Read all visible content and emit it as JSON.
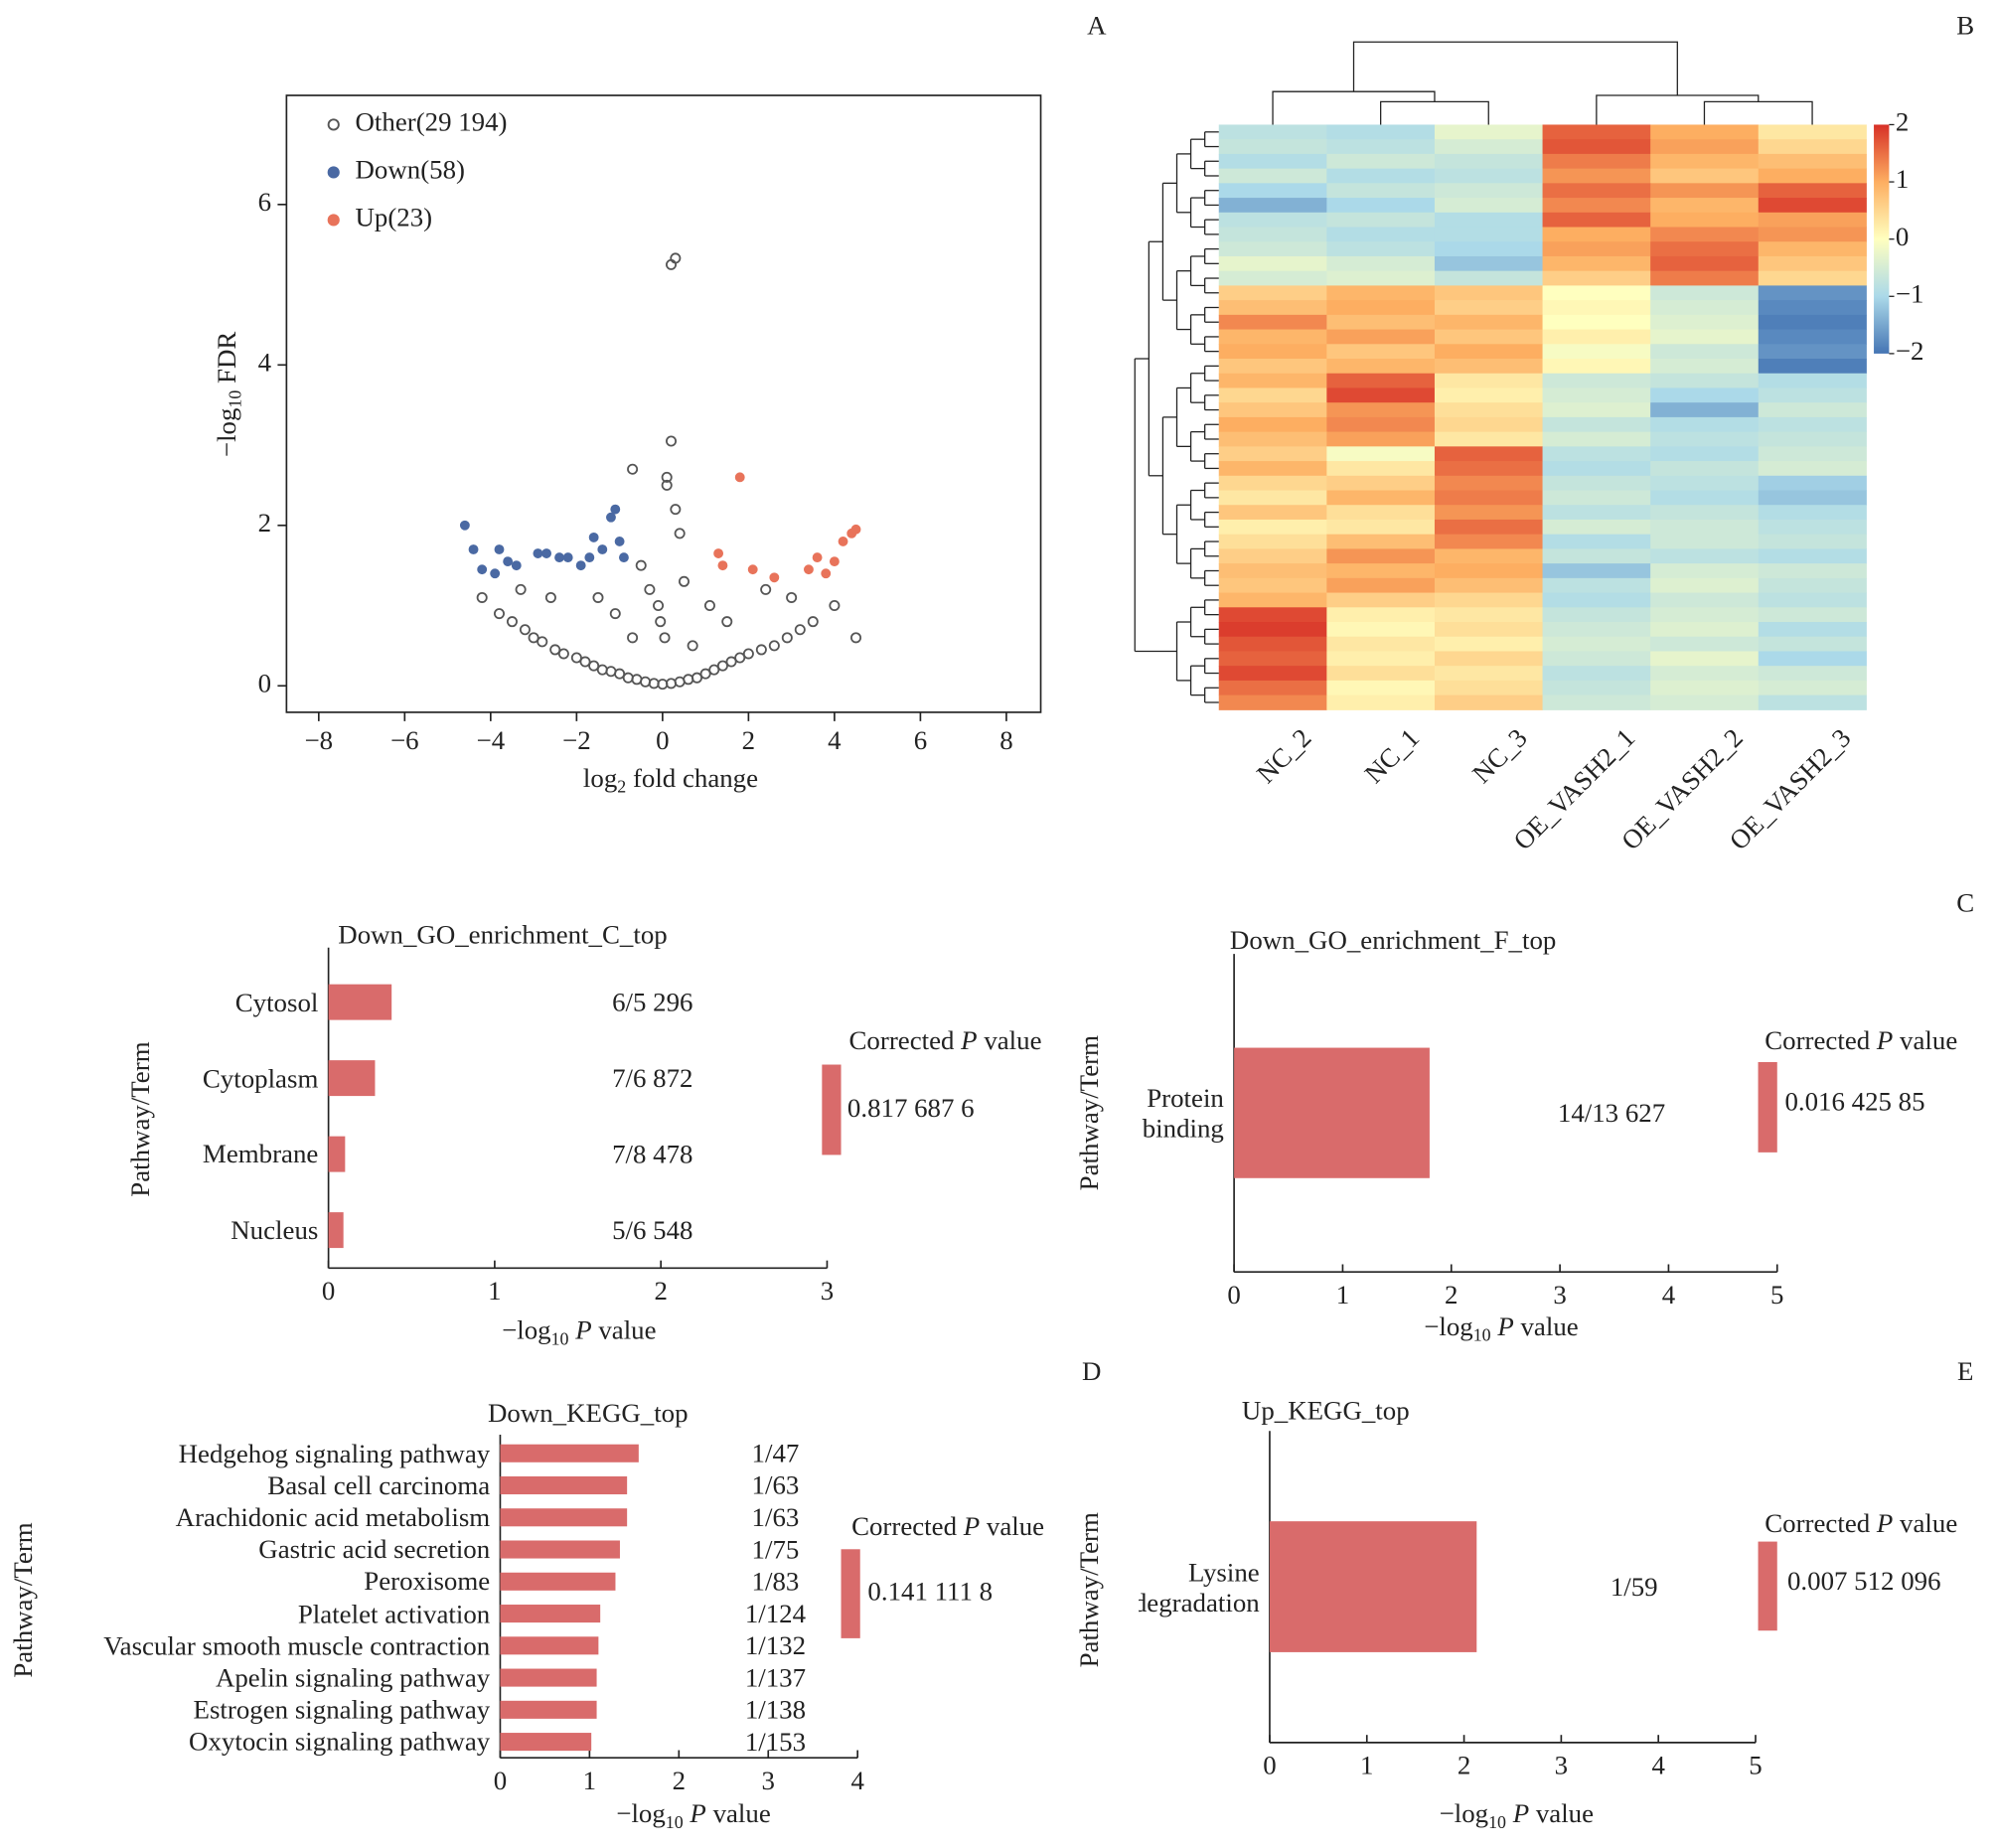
{
  "chart_data": [
    {
      "type": "scatter",
      "panel_label": "A",
      "x_label": [
        "log",
        "2",
        " fold change"
      ],
      "y_label": [
        "−log",
        "10",
        " FDR"
      ],
      "xlim": [
        -8.75,
        8.8
      ],
      "ylim": [
        -0.33,
        7.36
      ],
      "xticks": [
        {
          "value": -8,
          "label": "−8"
        },
        {
          "value": -6,
          "label": "−6"
        },
        {
          "value": -4,
          "label": "−4"
        },
        {
          "value": -2,
          "label": "−2"
        },
        0,
        2,
        4,
        6,
        8
      ],
      "yticks": [
        0,
        2,
        4,
        6
      ],
      "series": [
        {
          "name": "Other(29 194)",
          "color": "#555555",
          "marker": "hollow",
          "x": [
            -4.2,
            -3.8,
            -3.5,
            -3.2,
            -3.0,
            -2.8,
            -2.5,
            -2.3,
            -2.0,
            -1.8,
            -1.6,
            -1.4,
            -1.2,
            -1.0,
            -0.8,
            -0.6,
            -0.4,
            -0.2,
            0,
            0.2,
            0.4,
            0.6,
            0.8,
            1.0,
            1.2,
            1.4,
            1.6,
            1.8,
            2.0,
            2.3,
            2.6,
            2.9,
            3.2,
            3.5,
            4.0,
            4.5,
            0.2,
            0.3,
            -0.3,
            0.1,
            0.4,
            -0.5,
            0.5,
            -0.1,
            1.1,
            -1.5,
            2.4,
            -2.6,
            3.0,
            -3.3,
            0.05,
            -0.05,
            0.7,
            -0.7,
            1.5,
            -1.1,
            0.2,
            -0.7,
            0.1,
            0.3
          ],
          "y": [
            1.1,
            0.9,
            0.8,
            0.7,
            0.6,
            0.55,
            0.45,
            0.4,
            0.35,
            0.3,
            0.25,
            0.2,
            0.18,
            0.15,
            0.1,
            0.08,
            0.05,
            0.03,
            0.02,
            0.03,
            0.05,
            0.08,
            0.1,
            0.15,
            0.2,
            0.25,
            0.3,
            0.35,
            0.4,
            0.45,
            0.5,
            0.6,
            0.7,
            0.8,
            1.0,
            0.6,
            5.25,
            5.33,
            1.2,
            2.6,
            1.9,
            1.5,
            1.3,
            1.0,
            1.0,
            1.1,
            1.2,
            1.1,
            1.1,
            1.2,
            0.6,
            0.8,
            0.5,
            0.6,
            0.8,
            0.9,
            3.05,
            2.7,
            2.5,
            2.2
          ]
        },
        {
          "name": "Down(58)",
          "color": "#4a69a3",
          "marker": "filled",
          "x": [
            -4.6,
            -4.4,
            -4.2,
            -3.9,
            -3.8,
            -3.6,
            -3.4,
            -2.9,
            -2.7,
            -2.4,
            -2.2,
            -1.9,
            -1.7,
            -1.6,
            -1.4,
            -1.2,
            -1.1,
            -1.0,
            -0.9
          ],
          "y": [
            2.0,
            1.7,
            1.45,
            1.4,
            1.7,
            1.55,
            1.5,
            1.65,
            1.65,
            1.6,
            1.6,
            1.5,
            1.6,
            1.85,
            1.7,
            2.1,
            2.2,
            1.8,
            1.6
          ]
        },
        {
          "name": "Up(23)",
          "color": "#e8735a",
          "marker": "filled",
          "x": [
            1.3,
            1.4,
            1.8,
            2.1,
            2.6,
            3.4,
            3.6,
            3.8,
            4.0,
            4.2,
            4.4,
            4.5
          ],
          "y": [
            1.65,
            1.5,
            2.6,
            1.45,
            1.35,
            1.45,
            1.6,
            1.4,
            1.55,
            1.8,
            1.9,
            1.95
          ]
        }
      ]
    },
    {
      "type": "heatmap",
      "panel_label": "B",
      "columns": [
        "NC_2",
        "NC_1",
        "NC_3",
        "OE_VASH2_1",
        "OE_VASH2_2",
        "OE_VASH2_3"
      ],
      "clim": [
        -2,
        2
      ],
      "cticks": [
        2,
        1,
        0,
        {
          "value": -1,
          "label": "−1"
        },
        {
          "value": -2,
          "label": "−2"
        }
      ],
      "values": [
        [
          -0.8,
          -0.9,
          -0.3,
          1.6,
          1.0,
          0.3
        ],
        [
          -0.7,
          -0.8,
          -0.5,
          1.7,
          1.1,
          0.5
        ],
        [
          -0.9,
          -0.6,
          -0.7,
          1.4,
          0.9,
          0.8
        ],
        [
          -0.6,
          -0.9,
          -0.8,
          1.2,
          0.7,
          1.0
        ],
        [
          -1.0,
          -0.7,
          -0.6,
          1.5,
          1.2,
          1.6
        ],
        [
          -1.4,
          -1.0,
          -0.5,
          1.3,
          0.9,
          1.8
        ],
        [
          -0.8,
          -0.7,
          -0.9,
          1.6,
          1.0,
          1.1
        ],
        [
          -0.7,
          -0.9,
          -0.9,
          1.0,
          1.3,
          1.2
        ],
        [
          -0.6,
          -0.8,
          -1.0,
          1.1,
          1.5,
          0.9
        ],
        [
          -0.3,
          -0.5,
          -1.2,
          0.9,
          1.6,
          0.7
        ],
        [
          -0.5,
          -0.4,
          -0.7,
          0.6,
          1.4,
          0.5
        ],
        [
          0.6,
          0.9,
          0.7,
          0.0,
          -0.6,
          -1.7
        ],
        [
          0.8,
          1.0,
          0.6,
          0.1,
          -0.5,
          -1.8
        ],
        [
          1.3,
          0.8,
          0.9,
          0.0,
          -0.4,
          -1.9
        ],
        [
          0.9,
          1.1,
          0.7,
          0.2,
          -0.3,
          -1.8
        ],
        [
          1.0,
          0.7,
          1.0,
          -0.1,
          -0.6,
          -1.7
        ],
        [
          0.7,
          0.9,
          0.8,
          0.1,
          -0.5,
          -1.9
        ],
        [
          0.9,
          1.6,
          0.3,
          -0.6,
          -0.7,
          -0.9
        ],
        [
          0.5,
          1.8,
          0.2,
          -0.5,
          -1.0,
          -0.8
        ],
        [
          0.7,
          1.2,
          0.4,
          -0.4,
          -1.4,
          -0.6
        ],
        [
          1.0,
          1.3,
          0.5,
          -0.7,
          -0.9,
          -0.8
        ],
        [
          0.8,
          1.1,
          0.3,
          -0.5,
          -0.8,
          -0.7
        ],
        [
          0.6,
          -0.1,
          1.6,
          -0.8,
          -0.9,
          -0.6
        ],
        [
          0.9,
          0.3,
          1.5,
          -0.9,
          -0.7,
          -0.5
        ],
        [
          0.5,
          0.6,
          1.3,
          -0.7,
          -0.8,
          -1.1
        ],
        [
          0.3,
          0.9,
          1.4,
          -0.6,
          -0.9,
          -1.2
        ],
        [
          0.7,
          0.4,
          1.2,
          -0.8,
          -0.7,
          -0.9
        ],
        [
          0.2,
          0.3,
          1.5,
          -0.5,
          -0.6,
          -0.8
        ],
        [
          0.4,
          0.8,
          1.3,
          -0.9,
          -0.6,
          -0.7
        ],
        [
          0.6,
          1.2,
          0.9,
          -0.7,
          -0.8,
          -0.9
        ],
        [
          0.8,
          0.9,
          1.0,
          -1.2,
          -0.5,
          -0.6
        ],
        [
          0.7,
          1.1,
          0.8,
          -0.8,
          -0.4,
          -0.7
        ],
        [
          0.9,
          0.6,
          0.5,
          -0.9,
          -0.6,
          -0.8
        ],
        [
          1.8,
          0.2,
          0.3,
          -0.7,
          -0.5,
          -0.6
        ],
        [
          1.9,
          0.1,
          0.4,
          -0.6,
          -0.4,
          -0.9
        ],
        [
          1.7,
          0.3,
          0.2,
          -0.5,
          -0.6,
          -0.7
        ],
        [
          1.6,
          0.2,
          0.5,
          -0.6,
          -0.3,
          -1.0
        ],
        [
          1.8,
          0.4,
          0.3,
          -0.8,
          -0.5,
          -0.6
        ],
        [
          1.5,
          0.1,
          0.4,
          -0.7,
          -0.4,
          -0.5
        ],
        [
          1.3,
          0.2,
          0.6,
          -0.6,
          -0.5,
          -0.8
        ]
      ]
    },
    {
      "type": "bar",
      "orientation": "horizontal",
      "panel_label": "C",
      "title": "Down_GO_enrichment_C_top",
      "categories": [
        "Cytosol",
        "Cytoplasm",
        "Membrane",
        "Nucleus"
      ],
      "values": [
        0.38,
        0.28,
        0.1,
        0.09
      ],
      "ratios": [
        "6/5 296",
        "7/6 872",
        "7/8 478",
        "5/6 548"
      ],
      "color": "#d96b6b",
      "corrected_p": {
        "value": 0.8176876,
        "label": "0.817 687 6"
      },
      "legend_title": [
        "Corrected ",
        "P",
        " value"
      ],
      "xlim": [
        0,
        3
      ],
      "xticks": [
        0,
        1,
        2,
        3
      ],
      "y_label": "Pathway/Term",
      "x_label": [
        "−log",
        "10",
        " P",
        " value"
      ]
    },
    {
      "type": "bar",
      "orientation": "horizontal",
      "title": "Down_GO_enrichment_F_top",
      "categories": [
        "Protein binding"
      ],
      "values": [
        1.8
      ],
      "ratios": [
        "14/13 627"
      ],
      "color": "#d96b6b",
      "corrected_p": {
        "value": 0.01642585,
        "label": "0.016 425 85"
      },
      "legend_title": [
        "Corrected ",
        "P",
        " value"
      ],
      "xlim": [
        0,
        5
      ],
      "xticks": [
        0,
        1,
        2,
        3,
        4,
        5
      ],
      "y_label": "Pathway/Term",
      "x_label": [
        "−log",
        "10",
        " P",
        " value"
      ]
    },
    {
      "type": "bar",
      "orientation": "horizontal",
      "panel_label": "D",
      "title": "Down_KEGG_top",
      "categories": [
        "Hedgehog signaling pathway",
        "Basal cell carcinoma",
        "Arachidonic acid metabolism",
        "Gastric acid secretion",
        "Peroxisome",
        "Platelet activation",
        "Vascular smooth muscle contraction",
        "Apelin signaling pathway",
        "Estrogen signaling pathway",
        "Oxytocin signaling pathway"
      ],
      "values": [
        1.55,
        1.42,
        1.42,
        1.34,
        1.29,
        1.12,
        1.1,
        1.08,
        1.08,
        1.02
      ],
      "ratios": [
        "1/47",
        "1/63",
        "1/63",
        "1/75",
        "1/83",
        "1/124",
        "1/132",
        "1/137",
        "1/138",
        "1/153"
      ],
      "color": "#d96b6b",
      "corrected_p": {
        "value": 0.1411118,
        "label": "0.141 111 8"
      },
      "legend_title": [
        "Corrected ",
        "P",
        " value"
      ],
      "xlim": [
        0,
        4
      ],
      "xticks": [
        0,
        1,
        2,
        3,
        4
      ],
      "y_label": "Pathway/Term",
      "x_label": [
        "−log",
        "10",
        " P",
        " value"
      ]
    },
    {
      "type": "bar",
      "orientation": "horizontal",
      "panel_label": "E",
      "title": "Up_KEGG_top",
      "categories": [
        "Lysine degradation"
      ],
      "values": [
        2.13
      ],
      "ratios": [
        "1/59"
      ],
      "color": "#d96b6b",
      "corrected_p": {
        "value": 0.007512096,
        "label": "0.007 512 096"
      },
      "legend_title": [
        "Corrected ",
        "P",
        " value"
      ],
      "xlim": [
        0,
        5
      ],
      "xticks": [
        0,
        1,
        2,
        3,
        4,
        5
      ],
      "y_label": "Pathway/Term",
      "x_label": [
        "−log",
        "10",
        " P",
        " value"
      ]
    }
  ]
}
